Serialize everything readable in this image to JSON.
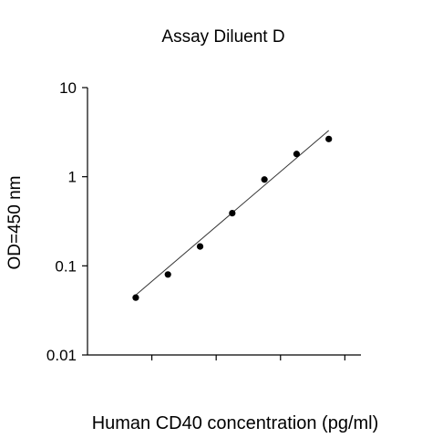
{
  "chart_data": {
    "type": "scatter",
    "title": "Assay Diluent D",
    "xlabel": "Human CD40 concentration (pg/ml)",
    "ylabel": "OD=450 nm",
    "yscale": "log",
    "ylim": [
      0.01,
      10
    ],
    "xlim": [
      0,
      8.5
    ],
    "y_ticks": [
      {
        "value": 10,
        "label": "10"
      },
      {
        "value": 1,
        "label": "1"
      },
      {
        "value": 0.1,
        "label": "0.1"
      },
      {
        "value": 0.01,
        "label": "0.01"
      }
    ],
    "x_ticks": [
      2,
      4,
      6,
      8
    ],
    "x_tick_labels_shown": false,
    "grid": false,
    "points": [
      {
        "x": 1.5,
        "y": 0.044
      },
      {
        "x": 2.5,
        "y": 0.08
      },
      {
        "x": 3.5,
        "y": 0.165
      },
      {
        "x": 4.5,
        "y": 0.39
      },
      {
        "x": 5.5,
        "y": 0.93
      },
      {
        "x": 6.5,
        "y": 1.8
      },
      {
        "x": 7.5,
        "y": 2.65
      }
    ],
    "fit_line": {
      "from": {
        "x": 1.5,
        "y": 0.047
      },
      "to": {
        "x": 7.5,
        "y": 3.3
      }
    },
    "colors": {
      "points": "#000000",
      "fit_line": "#333333",
      "axes": "#000000"
    }
  }
}
